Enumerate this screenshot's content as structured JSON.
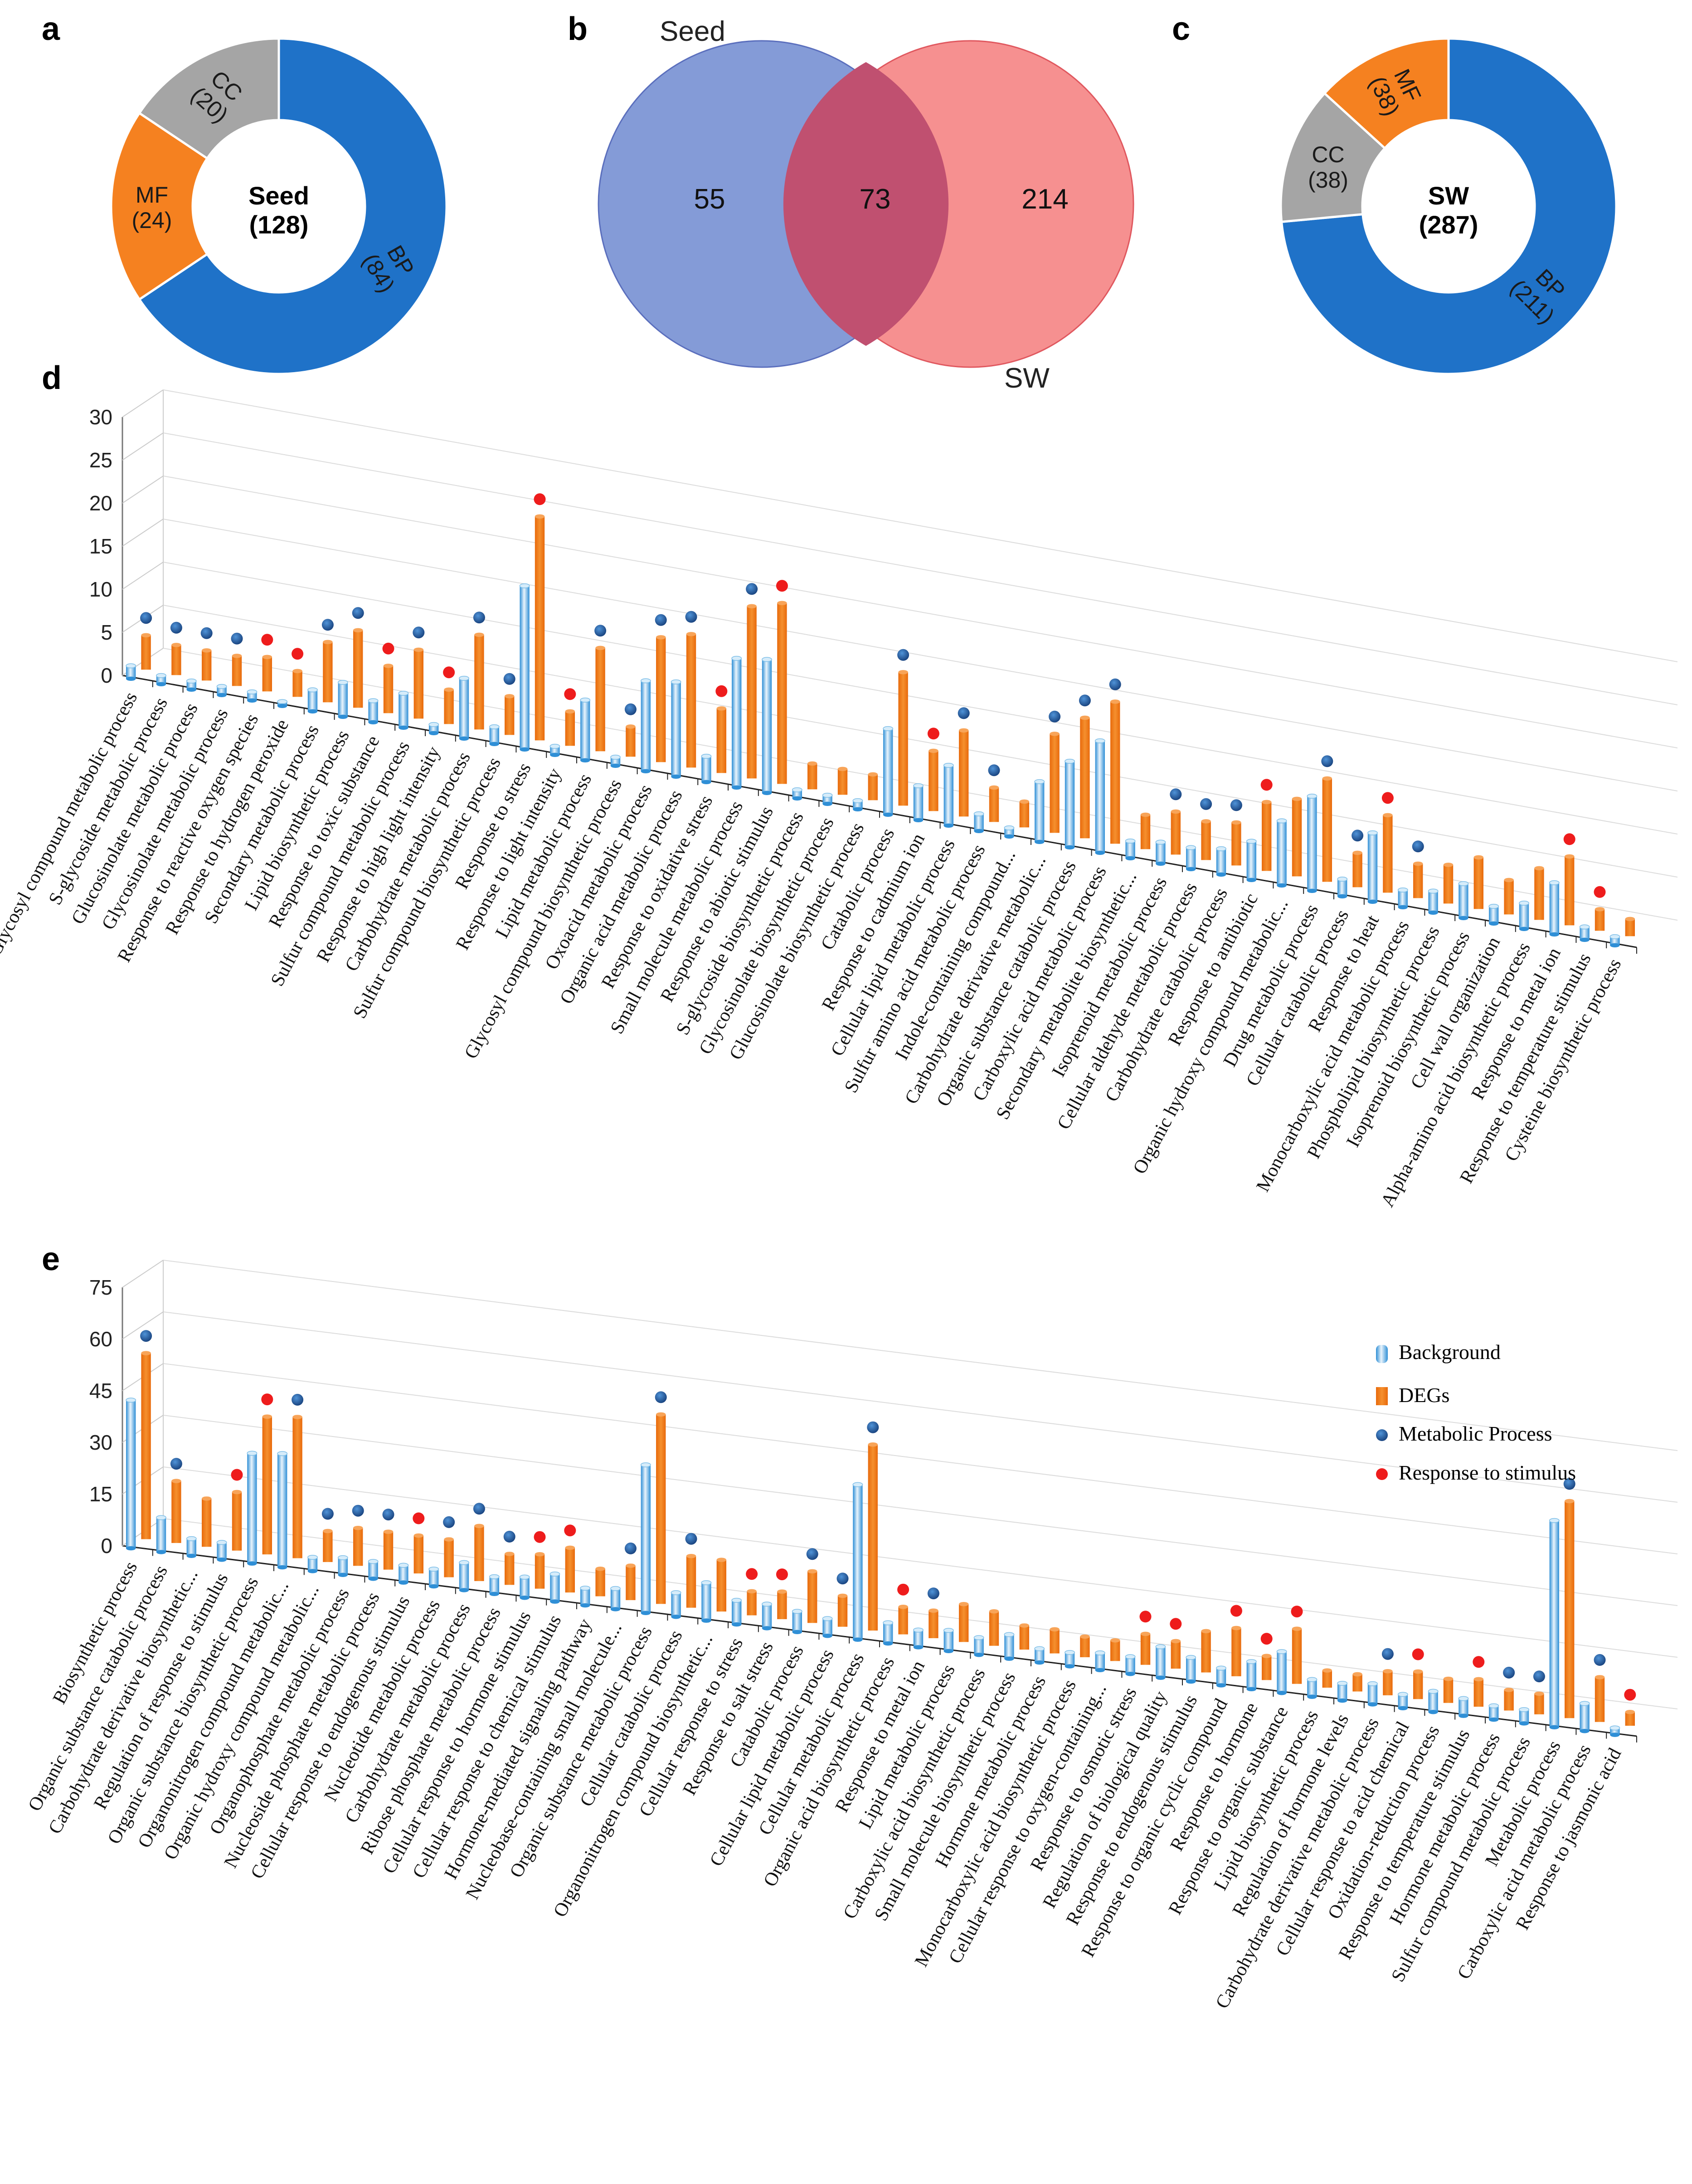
{
  "colors": {
    "bp": "#1f72c8",
    "mf": "#f58120",
    "cc": "#a5a5a5",
    "seed_circle": "#6f8ad0",
    "sw_circle": "#f47d7d",
    "overlap": "#c05070",
    "degs": "#f07f1e",
    "background_bar": "#56aee2",
    "metabolic_dot": "#1f5ea6",
    "stimulus_dot": "#ee1c1c"
  },
  "panel_labels": {
    "a": "a",
    "b": "b",
    "c": "c",
    "d": "d",
    "e": "e"
  },
  "chart_data": [
    {
      "id": "a",
      "type": "pie",
      "title": "Seed",
      "total": "(128)",
      "slices": [
        {
          "label": "BP",
          "value": 84,
          "value_text": "(84)"
        },
        {
          "label": "MF",
          "value": 24,
          "value_text": "(24)"
        },
        {
          "label": "CC",
          "value": 20,
          "value_text": "(20)"
        }
      ]
    },
    {
      "id": "b",
      "type": "venn",
      "sets": [
        "Seed",
        "SW"
      ],
      "only_seed": "55",
      "overlap": "73",
      "only_sw": "214"
    },
    {
      "id": "c",
      "type": "pie",
      "title": "SW",
      "total": "(287)",
      "slices": [
        {
          "label": "BP",
          "value": 211,
          "value_text": "(211)"
        },
        {
          "label": "CC",
          "value": 38,
          "value_text": "(38)"
        },
        {
          "label": "MF",
          "value": 38,
          "value_text": "(38)"
        }
      ]
    },
    {
      "id": "d",
      "type": "bar",
      "y_ticks": [
        "0",
        "5",
        "10",
        "15",
        "20",
        "25",
        "30"
      ],
      "ylim": [
        0,
        30
      ],
      "series": [
        {
          "name": "Background"
        },
        {
          "name": "DEGs"
        }
      ],
      "categories": [
        "Glycosyl compound metabolic process",
        "S-glycoside metabolic process",
        "Glucosinolate metabolic process",
        "Glycosinolate metabolic process",
        "Response to reactive oxygen species",
        "Response to hydrogen peroxide",
        "Secondary metabolic process",
        "Lipid biosynthetic process",
        "Response to toxic substance",
        "Sulfur compound metabolic process",
        "Response to high light intensity",
        "Carbohydrate metabolic process",
        "Sulfur compound biosynthetic process",
        "Response to stress",
        "Response to light intensity",
        "Lipid metabolic process",
        "Glycosyl compound biosynthetic process",
        "Oxoacid metabolic process",
        "Organic acid metabolic process",
        "Response to oxidative stress",
        "Small molecule metabolic process",
        "Response to abiotic stimulus",
        "S-glycoside biosynthetic process",
        "Glycosinolate biosynthetic process",
        "Glucosinolate biosynthetic process",
        "Catabolic process",
        "Response to cadmium ion",
        "Cellular lipid metabolic process",
        "Sulfur amino acid metabolic process",
        "Indole-containing compound...",
        "Carbohydrate derivative metabolic...",
        "Organic substance catabolic process",
        "Carboxylic acid metabolic process",
        "Secondary metabolite biosynthetic...",
        "Isoprenoid metabolic process",
        "Cellular aldehyde metabolic process",
        "Carbohydrate catabolic process",
        "Response to antibiotic",
        "Organic hydroxy compound metabolic...",
        "Drug metabolic process",
        "Cellular catabolic process",
        "Response to heat",
        "Monocarboxylic acid metabolic process",
        "Phospholipid biosynthetic process",
        "Isoprenoid biosynthetic process",
        "Cell wall organization",
        "Alpha-amino acid biosynthetic process",
        "Response to metal ion",
        "Response to temperature stimulus",
        "Cysteine biosynthetic process"
      ],
      "background": [
        1.5,
        1,
        1,
        1,
        1,
        0.5,
        2.5,
        4,
        2.5,
        4,
        1,
        7,
        2,
        19,
        1,
        7,
        1,
        10.5,
        11,
        3,
        15,
        15.5,
        1,
        1,
        1,
        10,
        4,
        7,
        2,
        1,
        7,
        10,
        13,
        2,
        2.5,
        2.5,
        3,
        4.5,
        7.5,
        11,
        2,
        8,
        2,
        2.5,
        4,
        2,
        3,
        6,
        1.5,
        1
      ],
      "degs": [
        4,
        3.5,
        3.5,
        3.5,
        4,
        3,
        7,
        9,
        5.5,
        8,
        4,
        11,
        4.5,
        26,
        4,
        12,
        3.5,
        14.5,
        15.5,
        7.5,
        20,
        21,
        3,
        3,
        3,
        15.5,
        7,
        10,
        4,
        3,
        11.5,
        14,
        16.5,
        4,
        5,
        4.5,
        5,
        8,
        9,
        12,
        4,
        9,
        4,
        4.5,
        6,
        4,
        6,
        8,
        2.5,
        2
      ],
      "markers": [
        "m",
        "m",
        "m",
        "m",
        "s",
        "s",
        "m",
        "m",
        "s",
        "m",
        "s",
        "m",
        "m",
        "s",
        "s",
        "m",
        "m",
        "m",
        "m",
        "s",
        "m",
        "s",
        "",
        "",
        "",
        "m",
        "s",
        "m",
        "m",
        "",
        "m",
        "m",
        "m",
        "",
        "m",
        "m",
        "m",
        "s",
        "",
        "m",
        "m",
        "s",
        "m",
        "",
        "",
        "",
        "",
        "s",
        "s",
        ""
      ]
    },
    {
      "id": "e",
      "type": "bar",
      "y_ticks": [
        "0",
        "15",
        "30",
        "45",
        "60",
        "75"
      ],
      "ylim": [
        0,
        75
      ],
      "legend": [
        "Background",
        "DEGs",
        "Metabolic Process",
        "Response to stimulus"
      ],
      "series": [
        {
          "name": "Background"
        },
        {
          "name": "DEGs"
        }
      ],
      "categories": [
        "Biosynthetic process",
        "Organic substance catabolic process",
        "Carbohydrate derivative biosynthetic...",
        "Regulation of response to stimulus",
        "Organic substance biosynthetic process",
        "Organonitrogen compound metabolic...",
        "Organic hydroxy compound metabolic...",
        "Organophosphate metabolic process",
        "Nucleoside phosphate metabolic process",
        "Cellular response to endogenous stimulus",
        "Nucleotide metabolic process",
        "Carbohydrate metabolic process",
        "Ribose phosphate metabolic process",
        "Cellular response to hormone stimulus",
        "Cellular response to chemical stimulus",
        "Hormone-mediated signaling pathway",
        "Nucleobase-containing small molecule...",
        "Organic substance metabolic process",
        "Cellular catabolic process",
        "Organonitrogen compound biosynthetic...",
        "Cellular response to stress",
        "Response to salt stress",
        "Catabolic process",
        "Cellular lipid metabolic process",
        "Cellular metabolic process",
        "Organic acid biosynthetic process",
        "Response to metal ion",
        "Lipid metabolic process",
        "Carboxylic acid biosynthetic process",
        "Small molecule biosynthetic process",
        "Hormone metabolic process",
        "Monocarboxylic acid biosynthetic process",
        "Cellular response to oxygen-containing...",
        "Response to osmotic stress",
        "Regulation of biological quality",
        "Response to endogenous stimulus",
        "Response to organic cyclic compound",
        "Response to hormone",
        "Response to organic substance",
        "Lipid biosynthetic process",
        "Regulation of hormone levels",
        "Carbohydrate derivative metabolic process",
        "Cellular response to acid chemical",
        "Oxidation-reduction process",
        "Response to temperature stimulus",
        "Hormone metabolic process",
        "Sulfur compound metabolic process",
        "Metabolic process",
        "Carboxylic acid metabolic process",
        "Response to jasmonic acid"
      ],
      "background": [
        43,
        10,
        5,
        5,
        32,
        33,
        4,
        5,
        5,
        5,
        5,
        8,
        5,
        6,
        8,
        5,
        6,
        43,
        7,
        11,
        7,
        7,
        6,
        5,
        45,
        6,
        5,
        6,
        5,
        7,
        4,
        4,
        5,
        5,
        9,
        7,
        5,
        8,
        12,
        5,
        5,
        6,
        4,
        6,
        5,
        4,
        4,
        60,
        8,
        2
      ],
      "degs": [
        54,
        18,
        14,
        17,
        40,
        41,
        9,
        11,
        11,
        11,
        11,
        16,
        9,
        10,
        13,
        8,
        10,
        55,
        15,
        15,
        7,
        8,
        15,
        9,
        54,
        8,
        8,
        11,
        10,
        7,
        7,
        6,
        6,
        9,
        8,
        12,
        14,
        7,
        16,
        5,
        5,
        7,
        8,
        7,
        8,
        6,
        6,
        63,
        13,
        4
      ],
      "markers": [
        "m",
        "m",
        "",
        "s",
        "s",
        "m",
        "m",
        "m",
        "m",
        "s",
        "m",
        "m",
        "m",
        "s",
        "s",
        "",
        "m",
        "m",
        "m",
        "",
        "s",
        "s",
        "m",
        "m",
        "m",
        "s",
        "m",
        "",
        "",
        "",
        "",
        "",
        "",
        "s",
        "s",
        "",
        "s",
        "s",
        "s",
        "",
        "",
        "m",
        "s",
        "",
        "s",
        "m",
        "m",
        "m",
        "m",
        "s"
      ]
    }
  ]
}
